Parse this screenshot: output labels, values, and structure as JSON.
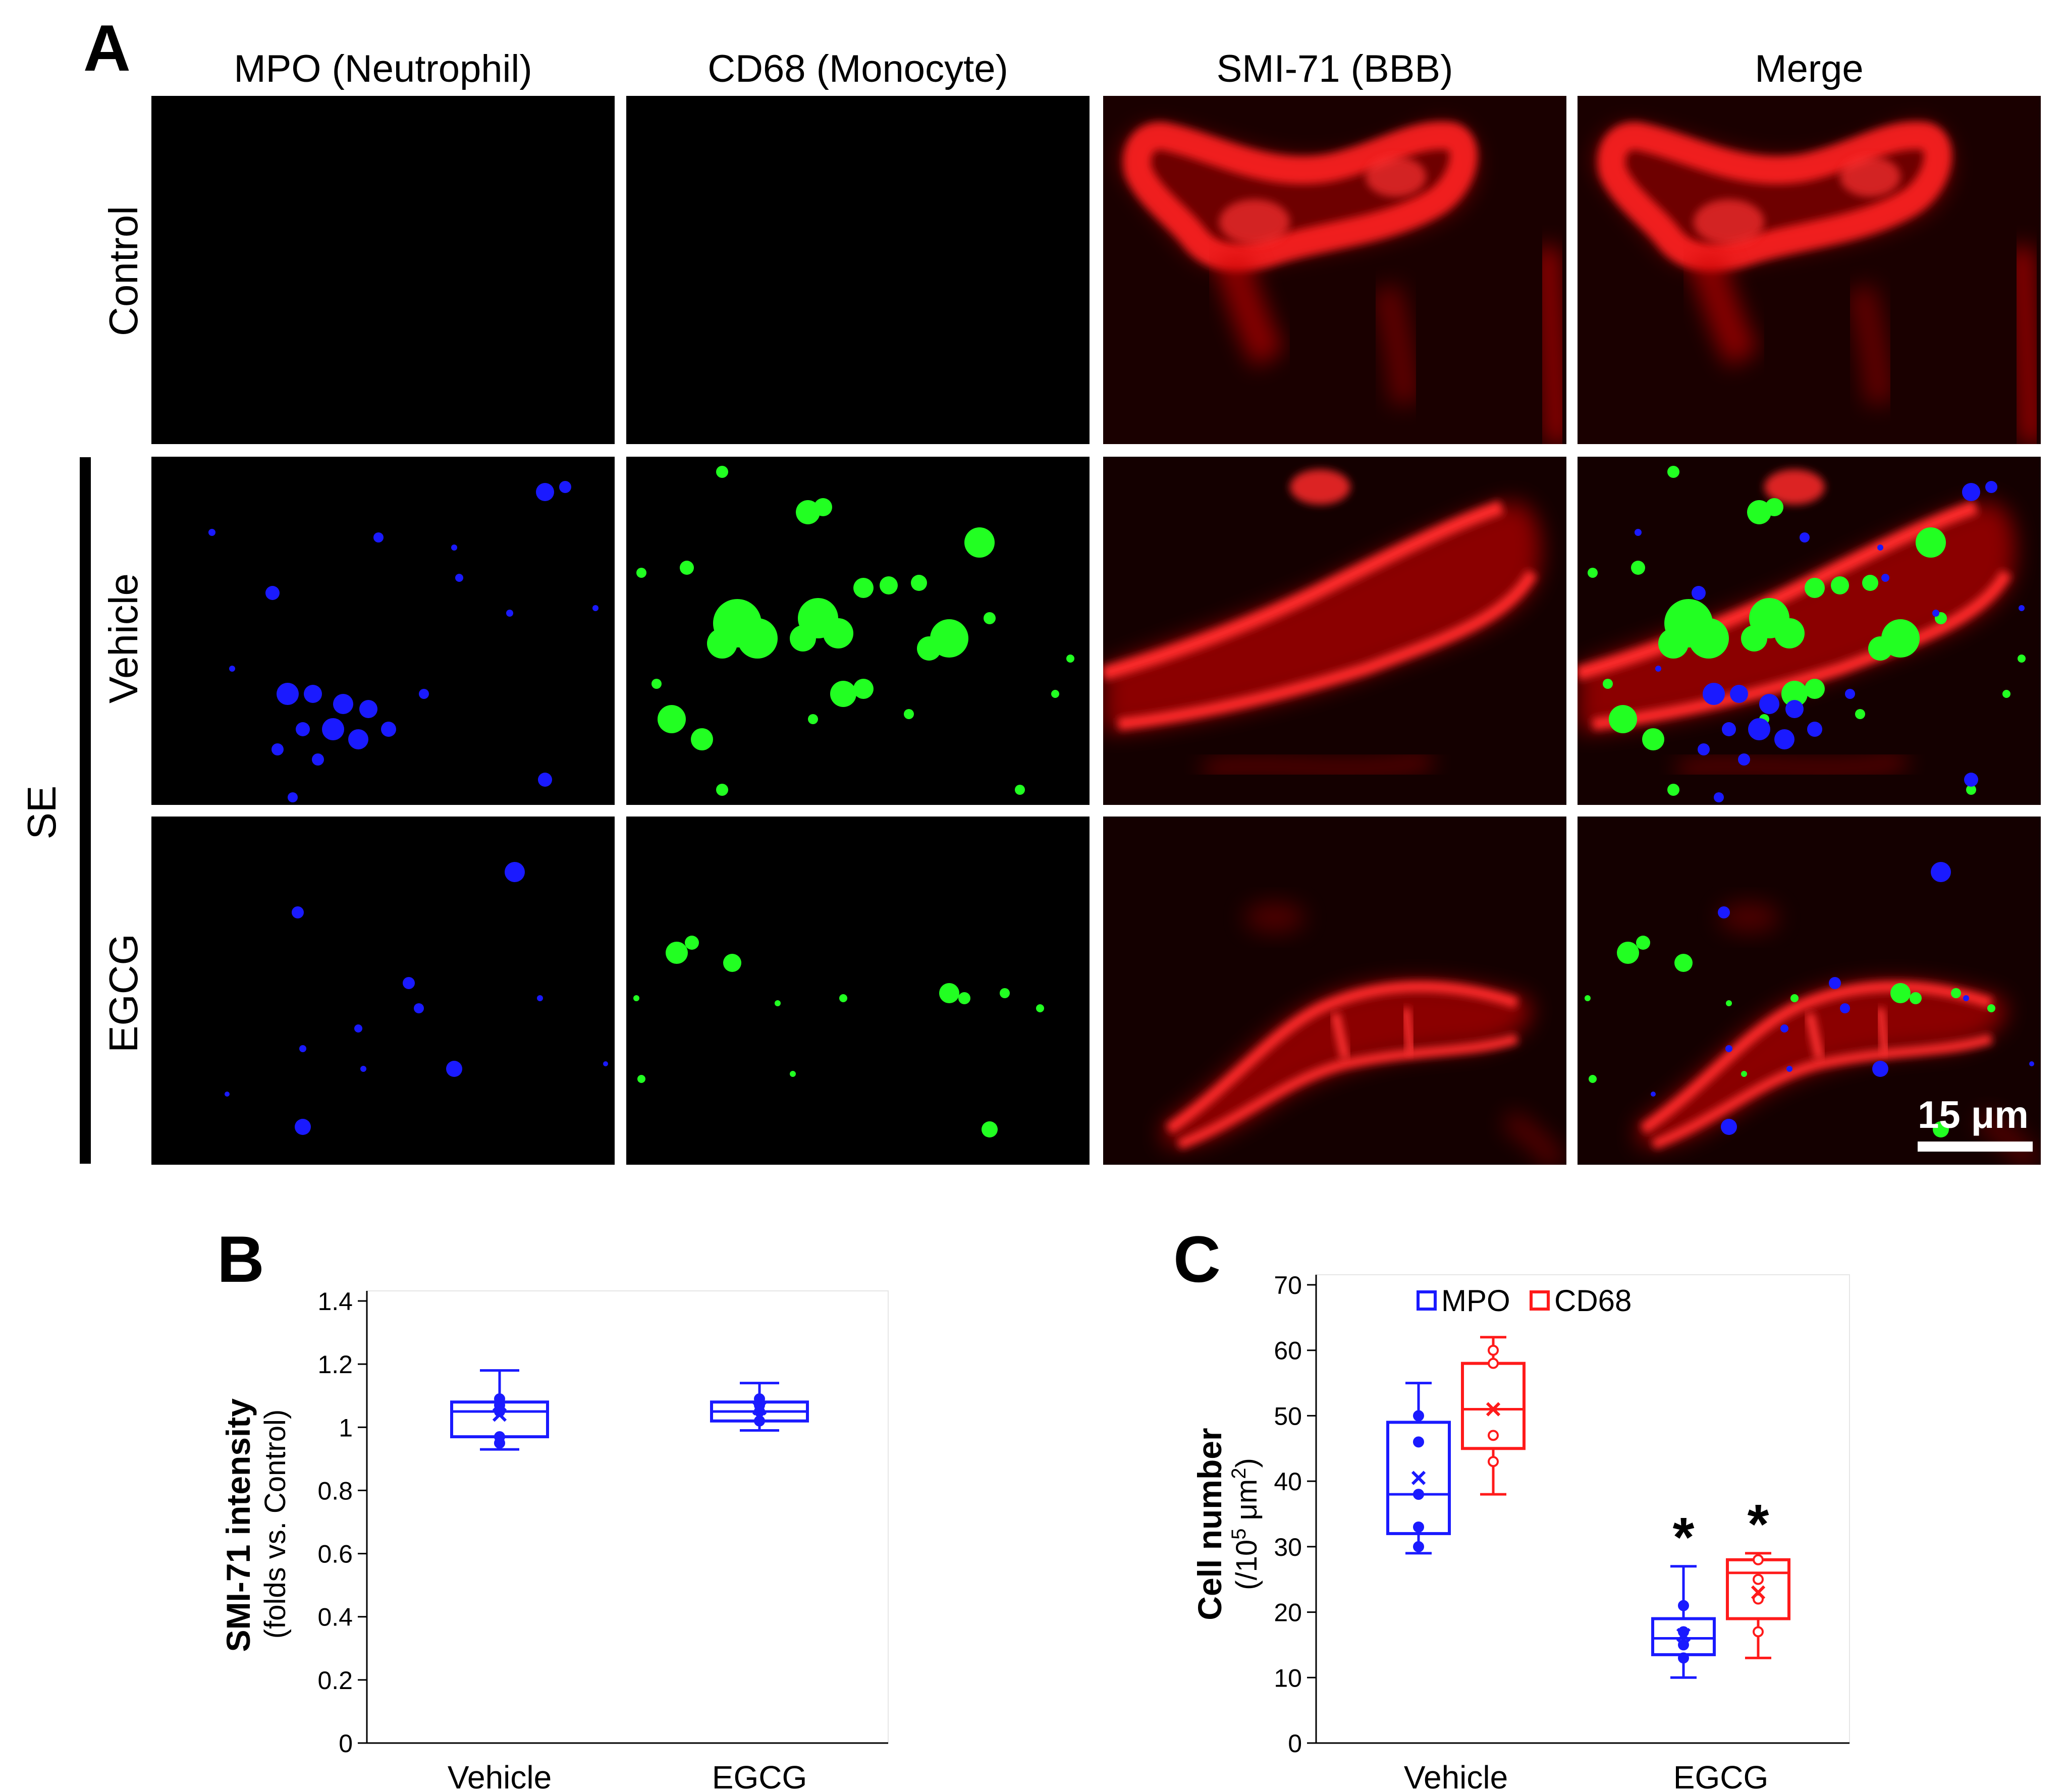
{
  "panel_a": {
    "letter": "A",
    "columns": [
      "MPO (Neutrophil)",
      "CD68 (Monocyte)",
      "SMI-71 (BBB)",
      "Merge"
    ],
    "rows": [
      "Control",
      "Vehicle",
      "EGCG"
    ],
    "group_label": "SE",
    "scale_bar_label": "15 μm",
    "colors": {
      "mpo": "#1a1aff",
      "cd68": "#22ff22",
      "smi71": "#ff1a1a",
      "background": "#000000"
    }
  },
  "panel_b": {
    "letter": "B",
    "ylabel_bold": "SMI-71 intensity",
    "ylabel_sub": "(folds vs. Control)"
  },
  "panel_c": {
    "letter": "C",
    "ylabel_bold": "Cell number",
    "ylabel_sub_prefix": "(/10",
    "ylabel_sub_sup1": "5",
    "ylabel_sub_mid": " μm",
    "ylabel_sub_sup2": "2",
    "ylabel_sub_suffix": ")",
    "significance_marker": "*"
  },
  "chart_data": [
    {
      "type": "box",
      "panel": "B",
      "categories": [
        "Vehicle",
        "EGCG"
      ],
      "ylabel": "SMI-71 intensity (folds vs. Control)",
      "ylim": [
        0,
        1.4
      ],
      "yticks": [
        "0",
        "0.2",
        "0.4",
        "0.6",
        "0.8",
        "1",
        "1.2",
        "1.4"
      ],
      "color": "#1a1aff",
      "series": [
        {
          "values": [
            {
              "category": "Vehicle",
              "min": 0.93,
              "q1": 0.97,
              "median": 1.05,
              "q3": 1.08,
              "max": 1.18,
              "mean": 1.04,
              "points": [
                0.95,
                0.97,
                1.05,
                1.07,
                1.09
              ]
            },
            {
              "category": "EGCG",
              "min": 0.99,
              "q1": 1.02,
              "median": 1.05,
              "q3": 1.08,
              "max": 1.14,
              "mean": 1.06,
              "points": [
                1.02,
                1.05,
                1.07,
                1.09
              ]
            }
          ]
        }
      ]
    },
    {
      "type": "box",
      "panel": "C",
      "categories": [
        "Vehicle",
        "EGCG"
      ],
      "ylabel": "Cell number (/10^5 μm^2)",
      "ylim": [
        0,
        70
      ],
      "yticks": [
        "0",
        "10",
        "20",
        "30",
        "40",
        "50",
        "60",
        "70"
      ],
      "legend_position": "top",
      "series": [
        {
          "name": "MPO",
          "color": "#1a1aff",
          "point_style": "filled",
          "values": [
            {
              "category": "Vehicle",
              "min": 29,
              "q1": 32,
              "median": 38,
              "q3": 49,
              "max": 55,
              "mean": 40.5,
              "points": [
                30,
                33,
                38,
                46,
                50
              ]
            },
            {
              "category": "EGCG",
              "min": 10,
              "q1": 13.5,
              "median": 16,
              "q3": 19,
              "max": 27,
              "mean": 16.5,
              "points": [
                13,
                15,
                17,
                21
              ],
              "significant": true
            }
          ]
        },
        {
          "name": "CD68",
          "color": "#ff1a1a",
          "point_style": "open",
          "values": [
            {
              "category": "Vehicle",
              "min": 38,
              "q1": 45,
              "median": 51,
              "q3": 58,
              "max": 62,
              "mean": 51,
              "points": [
                43,
                47,
                58,
                60
              ]
            },
            {
              "category": "EGCG",
              "min": 13,
              "q1": 19,
              "median": 26,
              "q3": 28,
              "max": 29,
              "mean": 23,
              "points": [
                17,
                22,
                25,
                28
              ],
              "significant": true
            }
          ]
        }
      ]
    }
  ]
}
